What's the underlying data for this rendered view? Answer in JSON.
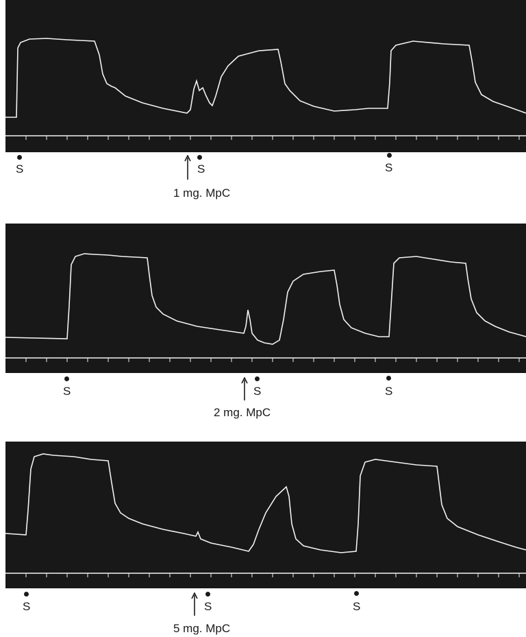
{
  "panels": [
    {
      "dose_label": "1 mg. MpC",
      "stimulus_label": "S"
    },
    {
      "dose_label": "2 mg. MpC",
      "stimulus_label": "S"
    },
    {
      "dose_label": "5 mg. MpC",
      "stimulus_label": "S"
    }
  ],
  "colors": {
    "background": "#ffffff",
    "trace_background": "#181818",
    "trace": "#f2f2f2",
    "ink": "#1a1a1a"
  }
}
